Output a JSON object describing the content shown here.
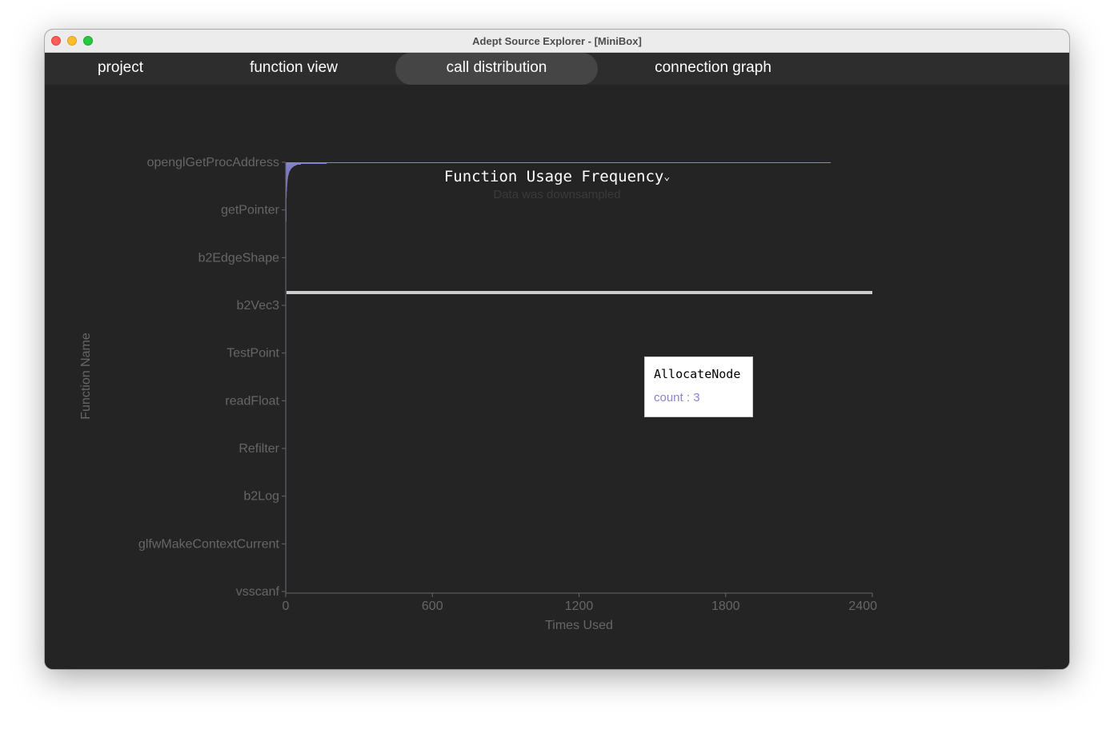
{
  "window": {
    "title": "Adept Source Explorer - [MiniBox]"
  },
  "tabs": [
    {
      "label": "project",
      "active": false
    },
    {
      "label": "function view",
      "active": false
    },
    {
      "label": "call distribution",
      "active": true
    },
    {
      "label": "connection graph",
      "active": false
    }
  ],
  "chart_header": {
    "title": "Function Usage Frequency",
    "dropdown_icon": "chevron-down-icon"
  },
  "tooltip": {
    "name": "AllocateNode",
    "count_text": "count : 3"
  },
  "colors": {
    "bar": "#8884d8",
    "cursor": "#cccccc",
    "axis_text": "#666666",
    "background": "#242424"
  },
  "chart_data": {
    "type": "bar",
    "orientation": "horizontal",
    "title": "Function Usage Frequency",
    "xlabel": "Times Used",
    "ylabel": "Function Name",
    "xlim": [
      0,
      2400
    ],
    "x_ticks": [
      0,
      600,
      1200,
      1800,
      2400
    ],
    "y_tick_labels": [
      "openglGetProcAddress",
      "getPointer",
      "b2EdgeShape",
      "b2Vec3",
      "TestPoint",
      "readFloat",
      "Refilter",
      "b2Log",
      "glfwMakeContextCurrent",
      "vsscanf"
    ],
    "annotation": "Data was downsampled",
    "grid": false,
    "legend": "none",
    "values": [
      2230,
      168,
      62,
      45,
      38,
      32,
      28,
      25,
      22,
      20,
      18,
      16,
      15,
      14,
      13,
      12,
      11,
      10,
      10,
      9,
      9,
      8,
      8,
      8,
      7,
      7,
      7,
      6,
      6,
      6,
      6,
      5,
      5,
      5,
      5,
      5,
      5,
      4,
      4,
      4,
      4,
      4,
      4,
      4,
      4,
      3,
      3,
      3,
      3,
      3,
      3,
      3,
      3,
      3,
      3,
      3,
      3,
      3,
      3,
      3,
      3,
      3,
      3,
      3,
      3,
      3,
      3,
      3,
      3,
      3,
      3,
      3,
      3,
      3,
      3,
      2,
      2,
      2,
      2,
      2,
      2,
      2,
      2,
      2,
      2,
      2,
      2,
      2,
      2,
      2,
      2,
      2,
      2,
      2,
      2,
      2,
      2,
      2,
      2,
      2,
      2,
      2,
      2,
      2,
      2,
      2,
      2,
      2,
      2,
      2,
      2,
      2,
      2,
      2,
      2,
      2,
      2,
      2,
      2,
      2,
      2,
      2,
      2,
      2,
      2,
      2,
      2,
      2,
      2,
      2,
      2,
      1,
      1,
      1,
      1,
      1,
      1,
      1,
      1,
      1,
      1,
      1,
      1,
      1,
      1,
      1,
      1,
      1,
      1,
      1,
      1,
      1,
      1,
      1,
      1,
      1,
      1,
      1,
      1,
      1,
      1,
      1,
      1,
      1,
      1,
      1,
      1,
      1,
      1,
      1,
      1,
      1,
      1,
      1,
      1,
      1,
      1,
      1,
      1,
      1,
      1,
      1,
      1,
      1,
      1,
      1,
      1,
      1,
      1,
      1,
      1,
      1,
      1,
      1,
      1,
      1,
      1,
      1,
      1,
      1,
      1,
      1,
      1,
      1,
      1,
      1,
      1,
      1,
      1,
      1,
      1,
      1,
      1,
      1,
      1,
      1,
      1,
      1,
      1,
      1,
      1,
      1,
      1,
      1,
      1,
      1,
      1,
      1,
      1,
      1,
      1,
      1,
      1,
      1,
      1,
      1,
      1,
      1,
      1,
      1,
      1,
      1,
      1,
      1,
      1,
      1,
      1,
      1,
      1,
      1,
      1,
      1,
      1,
      1,
      1,
      1,
      1,
      1,
      1,
      1,
      1,
      1,
      1,
      1,
      1,
      1,
      1,
      1,
      1,
      1,
      1,
      1,
      1,
      1,
      1,
      1,
      1,
      1,
      1,
      1,
      1,
      1,
      1,
      1,
      1,
      1,
      1,
      1,
      1,
      1,
      1,
      1,
      1,
      1,
      1,
      1,
      1,
      1,
      1,
      1,
      1,
      1,
      1,
      1,
      1,
      1,
      1,
      1,
      1,
      1,
      1,
      1,
      1,
      1,
      1,
      1,
      1,
      1,
      1,
      1,
      1,
      1,
      1,
      1,
      1,
      1,
      1,
      1,
      1,
      1,
      1,
      1,
      1,
      1,
      1,
      1,
      1,
      1,
      1,
      1,
      1,
      1,
      1,
      1,
      1,
      1,
      1,
      1,
      1,
      1,
      1,
      1,
      1,
      1,
      1,
      1,
      1,
      1,
      1,
      1,
      1,
      1,
      1,
      1,
      1,
      1,
      1,
      1,
      1,
      1,
      1,
      1,
      1,
      1,
      1,
      1,
      1,
      1,
      1,
      1,
      1,
      1,
      1,
      1,
      1,
      1,
      1,
      1,
      1,
      1,
      1,
      1,
      1,
      1,
      1,
      1,
      1,
      1,
      1,
      1,
      1,
      1,
      1,
      1,
      1,
      1,
      1,
      1,
      1,
      1,
      1,
      1,
      1,
      1,
      1,
      1,
      1,
      1,
      1,
      1,
      1,
      1,
      1,
      1,
      1,
      1,
      1,
      1,
      1,
      1,
      1,
      1,
      1,
      1,
      1,
      1,
      1,
      1,
      1,
      1,
      1,
      1,
      1,
      1,
      1,
      1,
      1,
      1,
      1,
      1,
      1,
      1,
      1,
      1,
      1,
      1,
      1,
      1,
      1,
      1,
      1,
      1,
      1,
      1,
      1,
      1,
      1,
      1,
      1,
      1,
      1,
      1,
      1,
      1,
      1,
      1,
      1,
      1,
      1,
      1,
      1,
      1,
      1,
      1,
      1,
      1,
      1,
      1,
      1,
      1,
      1,
      1,
      1,
      1,
      1,
      1,
      1,
      1,
      1,
      1,
      1,
      1,
      1,
      1,
      1,
      1,
      1,
      1,
      1,
      1,
      1,
      1,
      1,
      1,
      1,
      1,
      1,
      1,
      1,
      1,
      1,
      1,
      1,
      1,
      1,
      1,
      1,
      1,
      1,
      1,
      1,
      1,
      1,
      1,
      1,
      1,
      1,
      1,
      1,
      1,
      1,
      1,
      1,
      1,
      1,
      1,
      1
    ],
    "highlighted_category": "AllocateNode",
    "highlighted_value": 3
  }
}
